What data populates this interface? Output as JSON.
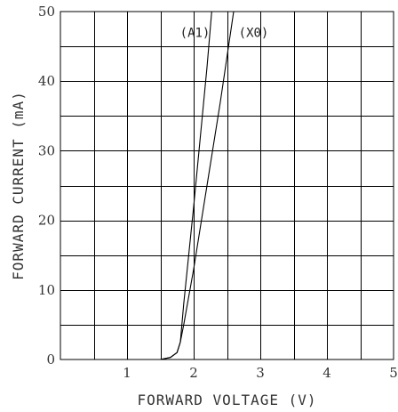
{
  "chart_data": {
    "type": "line",
    "title": "",
    "xlabel": "FORWARD VOLTAGE (V)",
    "ylabel": "FORWARD CURRENT (mA)",
    "xlim": [
      0,
      5
    ],
    "ylim": [
      0,
      50
    ],
    "x_ticks": [
      1,
      2,
      3,
      4,
      5
    ],
    "y_ticks": [
      0,
      10,
      20,
      30,
      40,
      50
    ],
    "x_grid_step": 0.5,
    "y_grid_step": 5,
    "grid": true,
    "legend": "none",
    "series": [
      {
        "name": "(A1)",
        "label_at": {
          "x": 2.02,
          "y": 47
        },
        "x": [
          0,
          1.5,
          1.65,
          1.75,
          1.8,
          1.85,
          2.0,
          2.1,
          2.2,
          2.27
        ],
        "y": [
          0,
          0,
          0.3,
          1.0,
          2.5,
          8,
          22,
          32,
          42,
          50
        ]
      },
      {
        "name": "(X0)",
        "label_at": {
          "x": 2.9,
          "y": 47
        },
        "x": [
          0,
          1.5,
          1.65,
          1.75,
          1.8,
          1.85,
          2.0,
          2.2,
          2.4,
          2.6
        ],
        "y": [
          0,
          0,
          0.3,
          1.0,
          2.5,
          5,
          13,
          25,
          37,
          50
        ]
      }
    ]
  }
}
